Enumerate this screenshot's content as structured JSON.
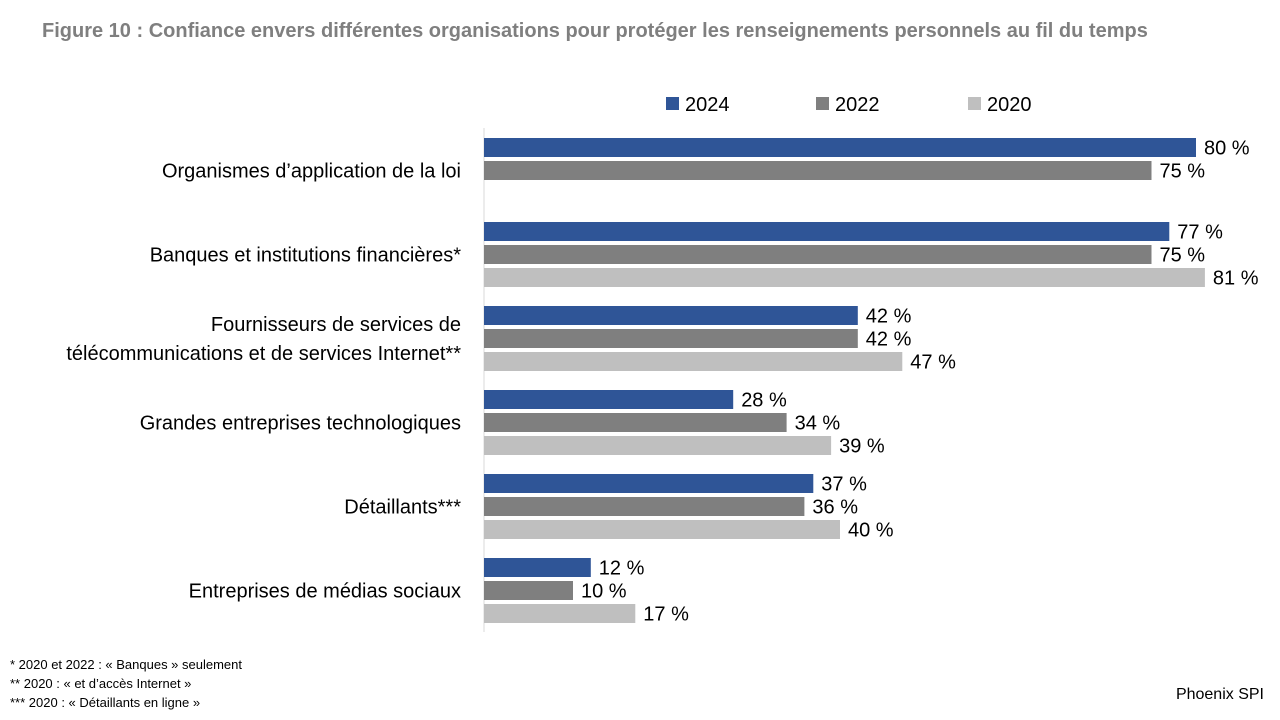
{
  "title": "Figure 10 : Confiance envers différentes organisations pour protéger les renseignements personnels au fil du temps",
  "chart_data": {
    "type": "bar",
    "orientation": "horizontal",
    "title": "Figure 10 : Confiance envers différentes organisations pour protéger les renseignements personnels au fil du temps",
    "xlabel": "",
    "ylabel": "",
    "xlim": [
      0,
      100
    ],
    "grid": false,
    "legend_position": "top-center",
    "categories": [
      [
        "Organismes d’application de la loi"
      ],
      [
        "Banques et institutions financières*"
      ],
      [
        "Fournisseurs de services de",
        "télécommunications et de services Internet**"
      ],
      [
        "Grandes entreprises technologiques"
      ],
      [
        "Détaillants***"
      ],
      [
        "Entreprises de médias sociaux"
      ]
    ],
    "series": [
      {
        "name": "2024",
        "color": "#2f5597",
        "values": [
          80,
          77,
          42,
          28,
          37,
          12
        ],
        "labels": [
          "80 %",
          "77 %",
          "42 %",
          "28 %",
          "37 %",
          "12 %"
        ]
      },
      {
        "name": "2022",
        "color": "#7f7f7f",
        "values": [
          75,
          75,
          42,
          34,
          36,
          10
        ],
        "labels": [
          "75 %",
          "75 %",
          "42 %",
          "34 %",
          "36 %",
          "10 %"
        ]
      },
      {
        "name": "2020",
        "color": "#bfbfbf",
        "values": [
          null,
          81,
          47,
          39,
          40,
          17
        ],
        "labels": [
          "",
          "81 %",
          "47 %",
          "39 %",
          "40 %",
          "17 %"
        ]
      }
    ]
  },
  "footnotes": [
    "* 2020 et 2022 : « Banques » seulement",
    "** 2020 : « et d’accès Internet »",
    "*** 2020 : « Détaillants en ligne »"
  ],
  "source": "Phoenix SPI"
}
